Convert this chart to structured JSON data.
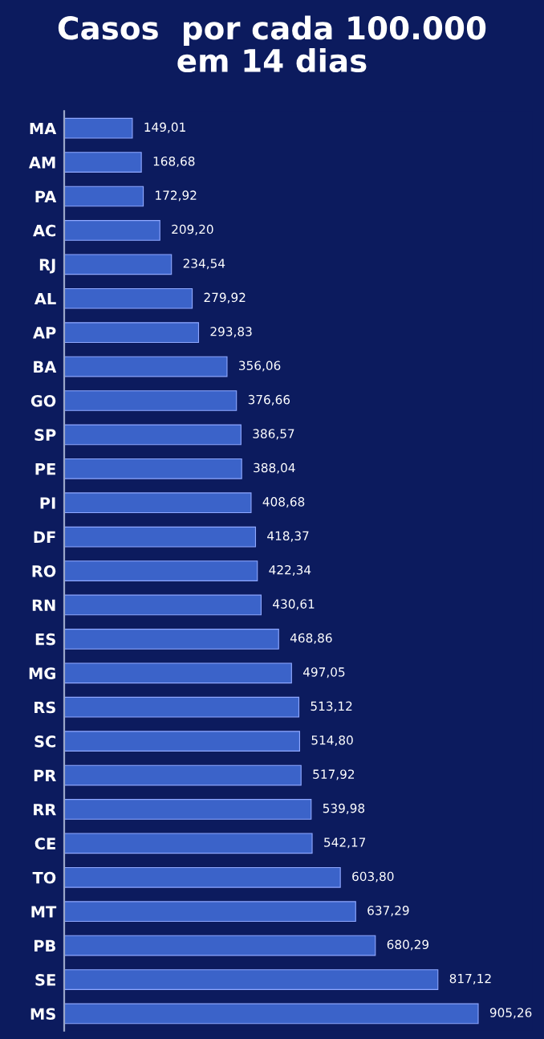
{
  "chart_data": {
    "type": "bar",
    "orientation": "horizontal",
    "title": "Casos  por cada 100.000\nem 14 dias",
    "categories": [
      "MA",
      "AM",
      "PA",
      "AC",
      "RJ",
      "AL",
      "AP",
      "BA",
      "GO",
      "SP",
      "PE",
      "PI",
      "DF",
      "RO",
      "RN",
      "ES",
      "MG",
      "RS",
      "SC",
      "PR",
      "RR",
      "CE",
      "TO",
      "MT",
      "PB",
      "SE",
      "MS"
    ],
    "values": [
      149.01,
      168.68,
      172.92,
      209.2,
      234.54,
      279.92,
      293.83,
      356.06,
      376.66,
      386.57,
      388.04,
      408.68,
      418.37,
      422.34,
      430.61,
      468.86,
      497.05,
      513.12,
      514.8,
      517.92,
      539.98,
      542.17,
      603.8,
      637.29,
      680.29,
      817.12,
      905.26
    ],
    "value_labels": [
      "149,01",
      "168,68",
      "172,92",
      "209,20",
      "234,54",
      "279,92",
      "293,83",
      "356,06",
      "376,66",
      "386,57",
      "388,04",
      "408,68",
      "418,37",
      "422,34",
      "430,61",
      "468,86",
      "497,05",
      "513,12",
      "514,80",
      "517,92",
      "539,98",
      "542,17",
      "603,80",
      "637,29",
      "680,29",
      "817,12",
      "905,26"
    ],
    "color": "#3b63c9",
    "grid": false,
    "legend": false
  }
}
